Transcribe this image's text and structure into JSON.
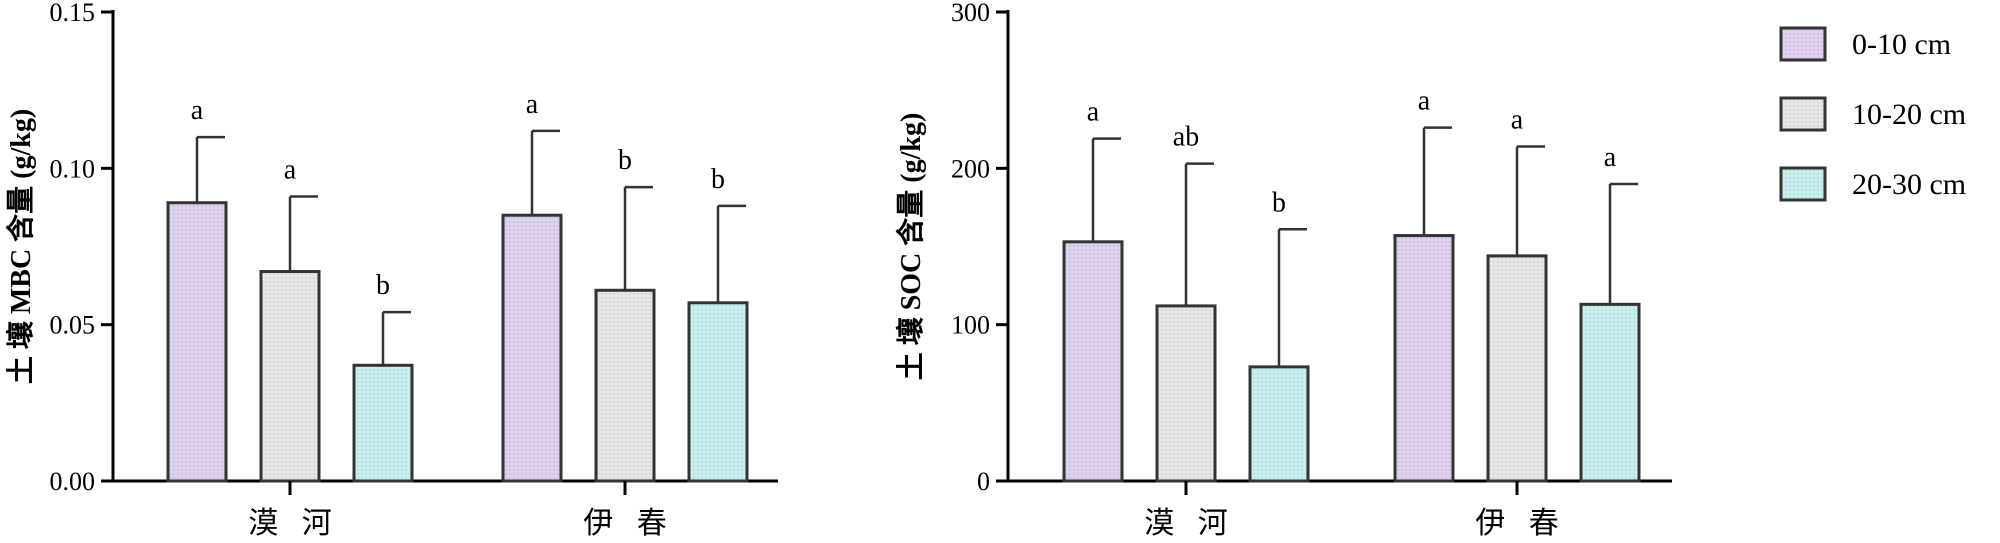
{
  "colors": {
    "p1": "#dcd0ea",
    "p2": "#e6e6e6",
    "p3": "#c3ecec",
    "stroke": "#333333"
  },
  "legend": [
    {
      "label": "0-10 cm",
      "pattern": "p1"
    },
    {
      "label": "10-20 cm",
      "pattern": "p2"
    },
    {
      "label": "20-30 cm",
      "pattern": "p3"
    }
  ],
  "chart_data": [
    {
      "type": "bar",
      "ylabel": "土 壤 MBC 含量 (g/kg)",
      "ylim": [
        0,
        0.15
      ],
      "yticks": [
        "0.00",
        "0.05",
        "0.10",
        "0.15"
      ],
      "categories": [
        "漠 河",
        "伊 春"
      ],
      "series": [
        {
          "name": "0-10 cm",
          "values": [
            0.089,
            0.085
          ],
          "errors": [
            0.021,
            0.027
          ],
          "sig": [
            "a",
            "a"
          ]
        },
        {
          "name": "10-20 cm",
          "values": [
            0.067,
            0.061
          ],
          "errors": [
            0.024,
            0.033
          ],
          "sig": [
            "a",
            "b"
          ]
        },
        {
          "name": "20-30 cm",
          "values": [
            0.037,
            0.057
          ],
          "errors": [
            0.017,
            0.031
          ],
          "sig": [
            "b",
            "b"
          ]
        }
      ]
    },
    {
      "type": "bar",
      "ylabel": "土 壤 SOC 含量 (g/kg)",
      "ylim": [
        0,
        300
      ],
      "yticks": [
        "0",
        "100",
        "200",
        "300"
      ],
      "categories": [
        "漠 河",
        "伊 春"
      ],
      "series": [
        {
          "name": "0-10 cm",
          "values": [
            153,
            157
          ],
          "errors": [
            66,
            69
          ],
          "sig": [
            "a",
            "a"
          ]
        },
        {
          "name": "10-20 cm",
          "values": [
            112,
            144
          ],
          "errors": [
            91,
            70
          ],
          "sig": [
            "ab",
            "a"
          ]
        },
        {
          "name": "20-30 cm",
          "values": [
            73,
            113
          ],
          "errors": [
            88,
            77
          ],
          "sig": [
            "b",
            "a"
          ]
        }
      ]
    }
  ]
}
